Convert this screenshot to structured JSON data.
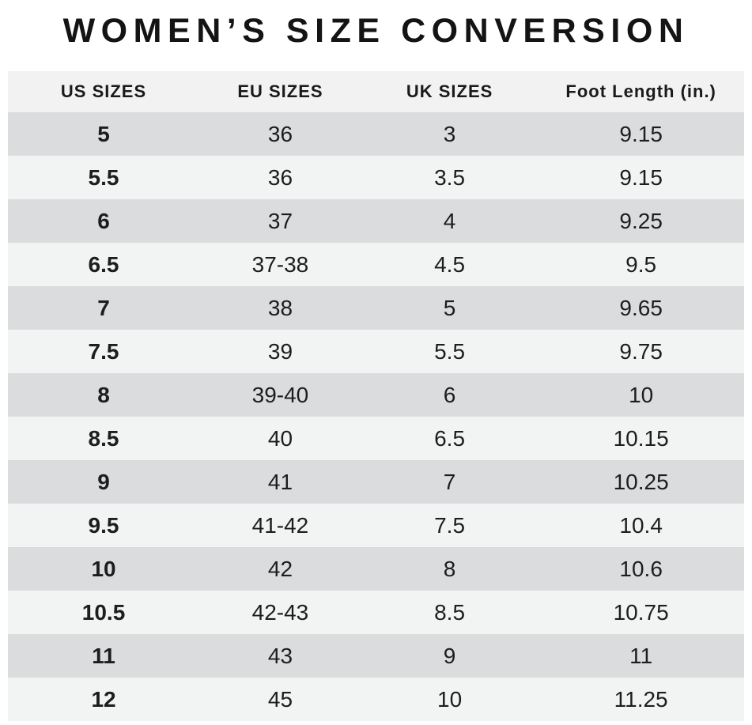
{
  "page": {
    "title": "WOMEN’S SIZE CONVERSION"
  },
  "chart_data": {
    "type": "table",
    "title": "WOMEN’S SIZE CONVERSION",
    "columns": [
      "US SIZES",
      "EU SIZES",
      "UK SIZES",
      "Foot Length (in.)"
    ],
    "rows": [
      [
        "5",
        "36",
        "3",
        "9.15"
      ],
      [
        "5.5",
        "36",
        "3.5",
        "9.15"
      ],
      [
        "6",
        "37",
        "4",
        "9.25"
      ],
      [
        "6.5",
        "37-38",
        "4.5",
        "9.5"
      ],
      [
        "7",
        "38",
        "5",
        "9.65"
      ],
      [
        "7.5",
        "39",
        "5.5",
        "9.75"
      ],
      [
        "8",
        "39-40",
        "6",
        "10"
      ],
      [
        "8.5",
        "40",
        "6.5",
        "10.15"
      ],
      [
        "9",
        "41",
        "7",
        "10.25"
      ],
      [
        "9.5",
        "41-42",
        "7.5",
        "10.4"
      ],
      [
        "10",
        "42",
        "8",
        "10.6"
      ],
      [
        "10.5",
        "42-43",
        "8.5",
        "10.75"
      ],
      [
        "11",
        "43",
        "9",
        "11"
      ],
      [
        "12",
        "45",
        "10",
        "11.25"
      ]
    ],
    "layout": {
      "striping": "alternating rows, first data row dark",
      "us_column_bold": true,
      "legend": "none",
      "grid": "off"
    }
  },
  "colors": {
    "background": "#ffffff",
    "row_dark": "#dbdcdd",
    "row_light": "#f2f3f3",
    "header_bg": "#f2f2f2",
    "text": "#1d1d1f"
  }
}
